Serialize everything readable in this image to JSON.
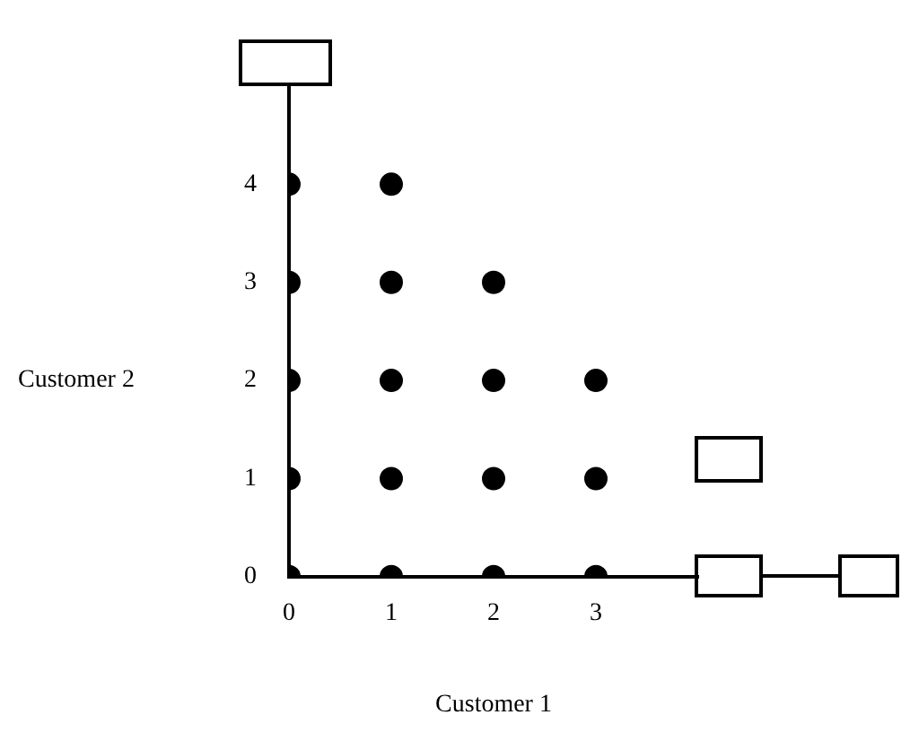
{
  "chart_data": {
    "type": "scatter",
    "xlabel": "Customer 1",
    "ylabel": "Customer 2",
    "series": [
      {
        "color": "#000000",
        "x": [
          0,
          0,
          0,
          0,
          0,
          1,
          1,
          1,
          1,
          1,
          2,
          2,
          2,
          2,
          3,
          3,
          3
        ],
        "values": [
          0,
          1,
          2,
          3,
          4,
          0,
          1,
          2,
          3,
          4,
          0,
          1,
          2,
          3,
          0,
          1,
          2
        ]
      }
    ],
    "xlim": [
      0,
      4
    ],
    "ylim": [
      0,
      5
    ],
    "xticks": [
      0,
      1,
      2,
      3
    ],
    "yticks": [
      0,
      1,
      2,
      3,
      4
    ],
    "grid": false,
    "legend": false,
    "marker": "circle"
  }
}
